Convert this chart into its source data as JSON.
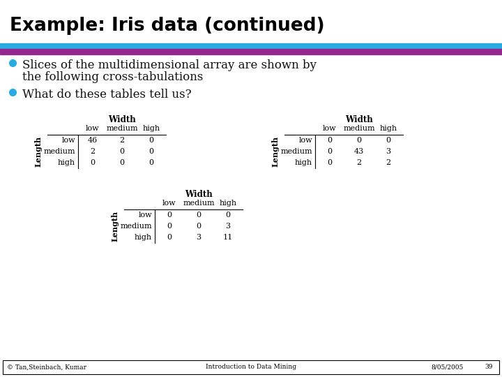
{
  "title": "Example: Iris data (continued)",
  "bullet1_line1": "Slices of the multidimensional array are shown by",
  "bullet1_line2": "the following cross-tabulations",
  "bullet2": "What do these tables tell us?",
  "bg_color": "#ffffff",
  "title_color": "#000000",
  "header_line1_color": "#29ABE2",
  "header_line2_color": "#92278F",
  "bullet_color": "#29ABE2",
  "table1": {
    "title": "Width",
    "col_headers": [
      "low",
      "medium",
      "high"
    ],
    "row_headers": [
      "low",
      "medium",
      "high"
    ],
    "data": [
      [
        46,
        2,
        0
      ],
      [
        2,
        0,
        0
      ],
      [
        0,
        0,
        0
      ]
    ],
    "row_label": "Length"
  },
  "table2": {
    "title": "Width",
    "col_headers": [
      "low",
      "medium",
      "high"
    ],
    "row_headers": [
      "low",
      "medium",
      "high"
    ],
    "data": [
      [
        0,
        0,
        0
      ],
      [
        0,
        43,
        3
      ],
      [
        0,
        2,
        2
      ]
    ],
    "row_label": "Length"
  },
  "table3": {
    "title": "Width",
    "col_headers": [
      "low",
      "medium",
      "high"
    ],
    "row_headers": [
      "low",
      "medium",
      "high"
    ],
    "data": [
      [
        0,
        0,
        0
      ],
      [
        0,
        0,
        3
      ],
      [
        0,
        3,
        11
      ]
    ],
    "row_label": "Length"
  },
  "footer_left": "© Tan,Steinbach, Kumar",
  "footer_center": "Introduction to Data Mining",
  "footer_right_date": "8/05/2005",
  "footer_right_page": "39"
}
